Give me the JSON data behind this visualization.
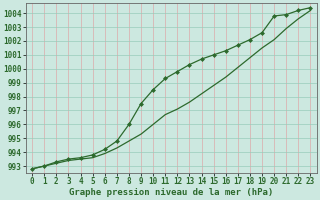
{
  "title": "Graphe pression niveau de la mer (hPa)",
  "background_color": "#cce8e0",
  "line_color": "#2d6a2d",
  "ylim": [
    992.5,
    1004.7
  ],
  "yticks": [
    993,
    994,
    995,
    996,
    997,
    998,
    999,
    1000,
    1001,
    1002,
    1003,
    1004
  ],
  "xlim": [
    -0.5,
    23.5
  ],
  "xticks": [
    0,
    1,
    2,
    3,
    4,
    5,
    6,
    7,
    8,
    9,
    10,
    11,
    12,
    13,
    14,
    15,
    16,
    17,
    18,
    19,
    20,
    21,
    22,
    23
  ],
  "hours": [
    0,
    1,
    2,
    3,
    4,
    5,
    6,
    7,
    8,
    9,
    10,
    11,
    12,
    13,
    14,
    15,
    16,
    17,
    18,
    19,
    20,
    21,
    22,
    23
  ],
  "series1": [
    992.8,
    993.0,
    993.2,
    993.4,
    993.5,
    993.6,
    993.9,
    994.3,
    994.8,
    995.3,
    996.0,
    996.7,
    997.1,
    997.6,
    998.2,
    998.8,
    999.4,
    1000.1,
    1000.8,
    1001.5,
    1002.1,
    1002.9,
    1003.6,
    1004.2
  ],
  "series2": [
    992.8,
    993.0,
    993.3,
    993.5,
    993.6,
    993.8,
    994.2,
    994.8,
    996.0,
    997.5,
    998.5,
    999.3,
    999.8,
    1000.3,
    1000.7,
    1001.0,
    1001.3,
    1001.7,
    1002.1,
    1002.6,
    1003.8,
    1003.9,
    1004.2,
    1004.4
  ],
  "tick_fontsize": 5.5,
  "title_fontsize": 6.5
}
